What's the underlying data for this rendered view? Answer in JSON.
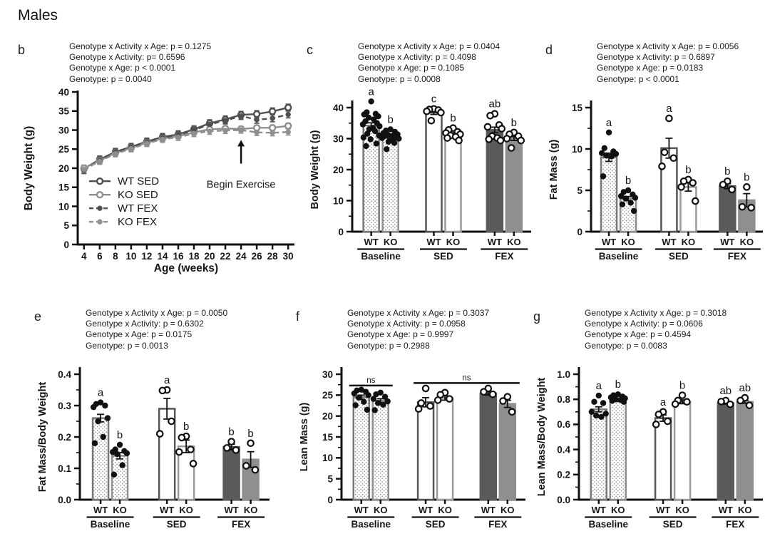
{
  "title": "Males",
  "colors": {
    "wt_dark": "#4f4f4f",
    "ko_gray": "#8f8f8f",
    "axis": "#111111",
    "point_fill": "#111111",
    "open_point_fill": "#ffffff"
  },
  "bar_styles": {
    "baselineWT": {
      "fill": "stipple",
      "stroke": "#787878",
      "points": "filled"
    },
    "baselineKO": {
      "fill": "stipple",
      "stroke": "#8f8f8f",
      "points": "filled"
    },
    "sedWT": {
      "fill": "#ffffff",
      "stroke": "#555555",
      "points": "open"
    },
    "sedKO": {
      "fill": "#ffffff",
      "stroke": "#9a9a9a",
      "points": "open"
    },
    "fexWT": {
      "fill": "#5a5a5a",
      "stroke": "#5a5a5a",
      "points": "open"
    },
    "fexKO": {
      "fill": "#8f8f8f",
      "stroke": "#8f8f8f",
      "points": "open"
    }
  },
  "panels": {
    "b": {
      "label": "b",
      "stats": [
        "Genotype x Activity x Age: p = 0.1275",
        "Genotype x Activity: p= 0.6596",
        "Genotype x Age: p < 0.0001",
        "Genotype: p = 0.0040"
      ]
    },
    "c": {
      "label": "c",
      "stats": [
        "Genotype x Activity x Age: p = 0.0404",
        "Genotype x Activity: p = 0.4098",
        "Genotype x Age: p = 0.1085",
        "Genotype: p = 0.0008"
      ]
    },
    "d": {
      "label": "d",
      "stats": [
        "Genotype x Activity x Age: p = 0.0056",
        "Genotype x Activity: p = 0.6897",
        "Genotype x Age: p = 0.0183",
        "Genotype: p < 0.0001"
      ]
    },
    "e": {
      "label": "e",
      "stats": [
        "Genotype x Activity x Age: p = 0.0050",
        "Genotype x Activity: p = 0.6302",
        "Genotype x Age: p = 0.0175",
        "Genotype: p = 0.0013"
      ]
    },
    "f": {
      "label": "f",
      "stats": [
        "Genotype x Activity x Age: p = 0.3037",
        "Genotype x Activity: p = 0.0958",
        "Genotype x Age: p = 0.9997",
        "Genotype: p = 0.2988"
      ]
    },
    "g": {
      "label": "g",
      "stats": [
        "Genotype x Activity x Age: p = 0.3018",
        "Genotype x Activity: p = 0.0606",
        "Genotype x Age: p = 0.4594",
        "Genotype: p = 0.0083"
      ]
    }
  },
  "chart_data": [
    {
      "panel": "b",
      "type": "line",
      "ylabel": "Body Weight (g)",
      "xlabel": "Age (weeks)",
      "ylim": [
        0,
        40
      ],
      "xlim": [
        3.2,
        30.8
      ],
      "yticks": [
        0,
        5,
        10,
        15,
        20,
        25,
        30,
        35,
        40
      ],
      "xticks": [
        4,
        6,
        8,
        10,
        12,
        14,
        16,
        18,
        20,
        22,
        24,
        26,
        28,
        30
      ],
      "x": [
        4,
        6,
        8,
        10,
        12,
        14,
        16,
        18,
        20,
        22,
        24,
        26,
        28,
        30
      ],
      "series": [
        {
          "name": "WT SED",
          "color": "#4f4f4f",
          "dash": false,
          "marker": "open",
          "values": [
            19.9,
            22.3,
            24.3,
            25.6,
            27.0,
            28.2,
            28.9,
            30.2,
            31.8,
            32.8,
            34.0,
            34.2,
            34.9,
            35.9
          ],
          "sem": 0.9
        },
        {
          "name": "KO SED",
          "color": "#8f8f8f",
          "dash": false,
          "marker": "open",
          "values": [
            20.0,
            22.0,
            24.0,
            25.3,
            26.7,
            27.8,
            28.4,
            29.4,
            30.2,
            30.4,
            30.3,
            30.6,
            30.6,
            31.1
          ],
          "sem": 0.7
        },
        {
          "name": "WT FEX",
          "color": "#4f4f4f",
          "dash": true,
          "marker": "filled",
          "values": [
            19.5,
            22.1,
            24.2,
            25.5,
            26.9,
            28.0,
            28.7,
            30.0,
            31.5,
            32.5,
            33.7,
            32.7,
            33.1,
            34.1
          ],
          "sem": 0.9
        },
        {
          "name": "KO FEX",
          "color": "#8f8f8f",
          "dash": true,
          "marker": "filled",
          "values": [
            19.7,
            21.8,
            23.8,
            25.1,
            26.5,
            27.6,
            28.1,
            29.1,
            29.7,
            29.9,
            30.0,
            29.4,
            29.3,
            29.5
          ],
          "sem": 0.8
        }
      ],
      "annotation": {
        "label": "Begin Exercise",
        "x": 24,
        "arrow_from": 21.2,
        "arrow_to": 27.4,
        "text_y": 15.6
      },
      "legend_position": "lower-left"
    },
    {
      "panel": "c",
      "type": "bar",
      "ylabel": "Body Weight (g)",
      "ylim": [
        0,
        40
      ],
      "yticks": [
        0,
        10,
        20,
        30,
        40
      ],
      "ytick_labels": [
        "0",
        "10",
        "20",
        "30",
        "40"
      ],
      "minor_step": 5,
      "groups": [
        "Baseline",
        "SED",
        "FEX"
      ],
      "bars": [
        {
          "label": "WT",
          "style": "baselineWT",
          "mean": 34.2,
          "sem": 0.9,
          "letter": "a",
          "points": [
            42,
            38.5,
            38,
            37.8,
            37.2,
            36.8,
            36.2,
            35.6,
            35,
            34.6,
            34,
            33.4,
            33,
            32.4,
            31.6,
            31,
            30.4,
            29.8,
            28.4,
            27.6
          ]
        },
        {
          "label": "KO",
          "style": "baselineKO",
          "mean": 30.6,
          "sem": 0.5,
          "letter": "b",
          "points": [
            33,
            32.6,
            32.2,
            31.8,
            31.4,
            31.2,
            31,
            30.8,
            30.4,
            30.2,
            30,
            29.6,
            29,
            28.6,
            26.6
          ]
        },
        {
          "label": "WT",
          "style": "sedWT",
          "mean": 38.4,
          "sem": 0.6,
          "letter": "c",
          "points": [
            39.6,
            39.4,
            39.2,
            38.8,
            38.4,
            35.8
          ]
        },
        {
          "label": "KO",
          "style": "sedKO",
          "mean": 31.4,
          "sem": 0.5,
          "letter": "b",
          "points": [
            33.4,
            32.8,
            32.2,
            31.8,
            31.4,
            31,
            30.6,
            30.2,
            29.4
          ]
        },
        {
          "label": "WT",
          "style": "fexWT",
          "mean": 32.8,
          "sem": 0.9,
          "letter": "ab",
          "points": [
            38,
            37.4,
            34.4,
            33.8,
            33.2,
            30.8,
            30.2,
            29.8,
            29.4
          ]
        },
        {
          "label": "KO",
          "style": "fexKO",
          "mean": 30.0,
          "sem": 0.6,
          "letter": "b",
          "points": [
            32,
            31.4,
            30.8,
            30,
            29.4,
            27
          ]
        }
      ]
    },
    {
      "panel": "d",
      "type": "bar",
      "ylabel": "Fat Mass (g)",
      "ylim": [
        0,
        15
      ],
      "yticks": [
        0,
        5,
        10,
        15
      ],
      "ytick_labels": [
        "0",
        "5",
        "10",
        "15"
      ],
      "minor_step": 2.5,
      "groups": [
        "Baseline",
        "SED",
        "FEX"
      ],
      "bars": [
        {
          "label": "WT",
          "style": "baselineWT",
          "mean": 9.0,
          "sem": 0.5,
          "letter": "a",
          "points": [
            12,
            10.1,
            9.7,
            9.5,
            9.4,
            9.2,
            9.1,
            6.7
          ]
        },
        {
          "label": "KO",
          "style": "baselineKO",
          "mean": 4.0,
          "sem": 0.25,
          "letter": "b",
          "points": [
            5.0,
            4.8,
            4.5,
            4.3,
            4.1,
            4.0,
            3.5,
            3.3,
            2.5
          ]
        },
        {
          "label": "WT",
          "style": "sedWT",
          "mean": 10.1,
          "sem": 1.2,
          "letter": "a",
          "points": [
            13.7,
            9.6,
            8.9,
            7.9
          ]
        },
        {
          "label": "KO",
          "style": "sedKO",
          "mean": 5.4,
          "sem": 0.5,
          "letter": "b",
          "points": [
            6.3,
            6.1,
            5.9,
            5.4,
            3.7
          ]
        },
        {
          "label": "WT",
          "style": "fexWT",
          "mean": 5.5,
          "sem": 0.3,
          "letter": "b",
          "points": [
            6.1,
            5.7,
            5.1
          ]
        },
        {
          "label": "KO",
          "style": "fexKO",
          "mean": 3.8,
          "sem": 0.8,
          "letter": "b",
          "points": [
            5.4,
            3.0,
            2.9
          ]
        }
      ]
    },
    {
      "panel": "e",
      "type": "bar",
      "ylabel": "Fat Mass/Body Weight",
      "ylim": [
        0,
        0.4
      ],
      "yticks": [
        0,
        0.1,
        0.2,
        0.3,
        0.4
      ],
      "ytick_labels": [
        "0.0",
        "0.1",
        "0.2",
        "0.3",
        "0.4"
      ],
      "minor_step": 0.05,
      "groups": [
        "Baseline",
        "SED",
        "FEX"
      ],
      "bars": [
        {
          "label": "WT",
          "style": "baselineWT",
          "mean": 0.26,
          "sem": 0.012,
          "letter": "a",
          "points": [
            0.31,
            0.305,
            0.3,
            0.295,
            0.26,
            0.25,
            0.2,
            0.18
          ]
        },
        {
          "label": "KO",
          "style": "baselineKO",
          "mean": 0.14,
          "sem": 0.01,
          "letter": "b",
          "points": [
            0.175,
            0.16,
            0.155,
            0.152,
            0.148,
            0.145,
            0.11,
            0.08
          ]
        },
        {
          "label": "WT",
          "style": "sedWT",
          "mean": 0.29,
          "sem": 0.033,
          "letter": "a",
          "points": [
            0.35,
            0.348,
            0.25,
            0.21
          ]
        },
        {
          "label": "KO",
          "style": "sedKO",
          "mean": 0.17,
          "sem": 0.02,
          "letter": "b",
          "points": [
            0.202,
            0.198,
            0.16,
            0.152,
            0.115
          ]
        },
        {
          "label": "WT",
          "style": "fexWT",
          "mean": 0.168,
          "sem": 0.009,
          "letter": "b",
          "points": [
            0.185,
            0.165,
            0.158
          ]
        },
        {
          "label": "KO",
          "style": "fexKO",
          "mean": 0.128,
          "sem": 0.025,
          "letter": "b",
          "points": [
            0.18,
            0.108,
            0.095
          ]
        }
      ]
    },
    {
      "panel": "f",
      "type": "bar",
      "ylabel": "Lean Mass (g)",
      "ylim": [
        0,
        30
      ],
      "yticks": [
        0,
        5,
        10,
        15,
        20,
        25,
        30
      ],
      "ytick_labels": [
        "0",
        "5",
        "10",
        "15",
        "20",
        "25",
        "30"
      ],
      "minor_step": 2.5,
      "groups": [
        "Baseline",
        "SED",
        "FEX"
      ],
      "bars": [
        {
          "label": "WT",
          "style": "baselineWT",
          "mean": 24.5,
          "sem": 0.5,
          "points": [
            26.3,
            26.1,
            25.8,
            25.4,
            25,
            24.4,
            23.4,
            22.6,
            21.5
          ]
        },
        {
          "label": "KO",
          "style": "baselineKO",
          "mean": 23.7,
          "sem": 0.45,
          "points": [
            25.6,
            25.2,
            24.6,
            24.1,
            23.5,
            23.1,
            22.7,
            21.4
          ]
        },
        {
          "label": "WT",
          "style": "sedWT",
          "mean": 23.3,
          "sem": 1.1,
          "points": [
            26.6,
            23.1,
            22.4,
            21.7
          ]
        },
        {
          "label": "KO",
          "style": "sedKO",
          "mean": 24.3,
          "sem": 0.5,
          "points": [
            25.6,
            25.1,
            24.1,
            23.8
          ]
        },
        {
          "label": "WT",
          "style": "fexWT",
          "mean": 25.4,
          "sem": 0.4,
          "points": [
            26.6,
            25.8,
            25.2
          ]
        },
        {
          "label": "KO",
          "style": "fexKO",
          "mean": 22.9,
          "sem": 0.85,
          "points": [
            24.6,
            23.6,
            21.0
          ]
        }
      ],
      "annotations": [
        {
          "label": "ns",
          "from": 0,
          "to": 1,
          "y": 27.3
        },
        {
          "label": "ns",
          "from": 2,
          "to": 5,
          "y": 27.9
        }
      ]
    },
    {
      "panel": "g",
      "type": "bar",
      "ylabel": "Lean Mass/Body Weight",
      "ylim": [
        0,
        1.0
      ],
      "yticks": [
        0,
        0.2,
        0.4,
        0.6,
        0.8,
        1.0
      ],
      "ytick_labels": [
        "0.0",
        "0.2",
        "0.4",
        "0.6",
        "0.8",
        "1.0"
      ],
      "minor_step": 0.1,
      "groups": [
        "Baseline",
        "SED",
        "FEX"
      ],
      "bars": [
        {
          "label": "WT",
          "style": "baselineWT",
          "mean": 0.72,
          "sem": 0.02,
          "letter": "a",
          "points": [
            0.83,
            0.78,
            0.77,
            0.7,
            0.685,
            0.67,
            0.66
          ]
        },
        {
          "label": "KO",
          "style": "baselineKO",
          "mean": 0.79,
          "sem": 0.008,
          "letter": "b",
          "points": [
            0.84,
            0.832,
            0.822,
            0.815,
            0.808,
            0.8,
            0.795,
            0.788,
            0.78
          ]
        },
        {
          "label": "WT",
          "style": "sedWT",
          "mean": 0.65,
          "sem": 0.025,
          "letter": "a",
          "points": [
            0.7,
            0.68,
            0.625,
            0.6
          ]
        },
        {
          "label": "KO",
          "style": "sedKO",
          "mean": 0.78,
          "sem": 0.015,
          "letter": "b",
          "points": [
            0.832,
            0.79,
            0.78,
            0.762
          ]
        },
        {
          "label": "WT",
          "style": "fexWT",
          "mean": 0.77,
          "sem": 0.008,
          "letter": "ab",
          "points": [
            0.79,
            0.782,
            0.76
          ]
        },
        {
          "label": "KO",
          "style": "fexKO",
          "mean": 0.78,
          "sem": 0.012,
          "letter": "ab",
          "points": [
            0.812,
            0.79,
            0.752
          ]
        }
      ]
    }
  ]
}
